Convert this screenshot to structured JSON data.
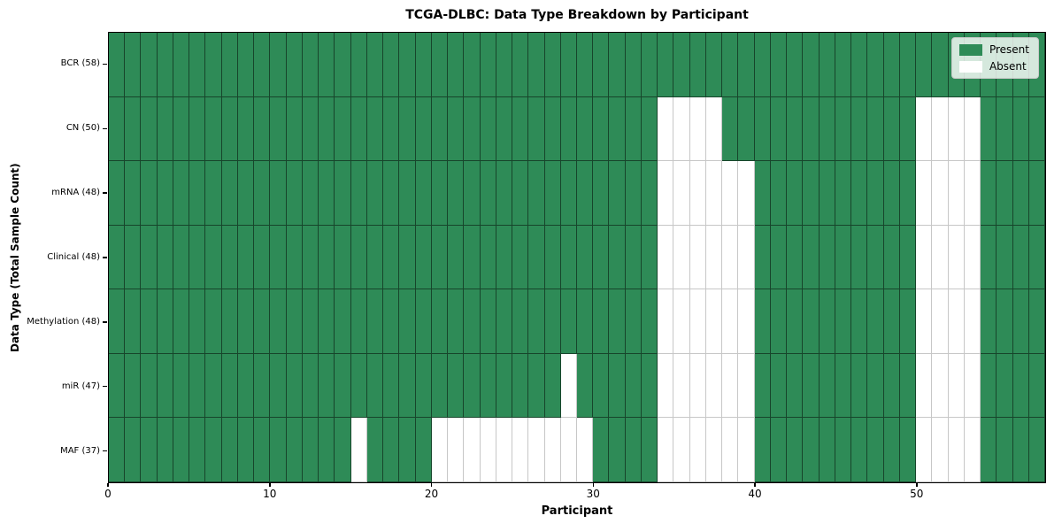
{
  "figure": {
    "background": "#ffffff"
  },
  "chart_data": {
    "type": "heatmap",
    "title": "TCGA-DLBC: Data Type Breakdown by Participant",
    "xlabel": "Participant",
    "ylabel": "Data Type (Total Sample Count)",
    "legend_labels": [
      "Present",
      "Absent"
    ],
    "legend_position": "upper right",
    "n_participants": 58,
    "x_range": [
      0,
      58
    ],
    "x_ticks": [
      0,
      10,
      20,
      30,
      40,
      50
    ],
    "colors": {
      "present": "#2e8b57",
      "absent": "#ffffff",
      "grid_line_on_present": "rgba(0,0,0,0.5)",
      "grid_line_on_absent": "rgba(0,0,0,0.22)"
    },
    "rows": [
      {
        "label": "BCR (58)",
        "data_type": "BCR",
        "total_samples": 58,
        "absent_participants": []
      },
      {
        "label": "CN (50)",
        "data_type": "CN",
        "total_samples": 50,
        "absent_participants": [
          34,
          35,
          36,
          37,
          50,
          51,
          52,
          53
        ]
      },
      {
        "label": "mRNA (48)",
        "data_type": "mRNA",
        "total_samples": 48,
        "absent_participants": [
          34,
          35,
          36,
          37,
          38,
          39,
          50,
          51,
          52,
          53
        ]
      },
      {
        "label": "Clinical (48)",
        "data_type": "Clinical",
        "total_samples": 48,
        "absent_participants": [
          34,
          35,
          36,
          37,
          38,
          39,
          50,
          51,
          52,
          53
        ]
      },
      {
        "label": "Methylation (48)",
        "data_type": "Methylation",
        "total_samples": 48,
        "absent_participants": [
          34,
          35,
          36,
          37,
          38,
          39,
          50,
          51,
          52,
          53
        ]
      },
      {
        "label": "miR (47)",
        "data_type": "miR",
        "total_samples": 47,
        "absent_participants": [
          28,
          34,
          35,
          36,
          37,
          38,
          39,
          50,
          51,
          52,
          53
        ]
      },
      {
        "label": "MAF (37)",
        "data_type": "MAF",
        "total_samples": 37,
        "absent_participants": [
          15,
          20,
          21,
          22,
          23,
          24,
          25,
          26,
          27,
          28,
          29,
          34,
          35,
          36,
          37,
          38,
          39,
          50,
          51,
          52,
          53
        ]
      }
    ]
  }
}
